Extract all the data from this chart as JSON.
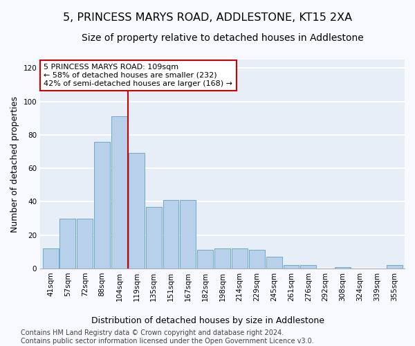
{
  "title": "5, PRINCESS MARYS ROAD, ADDLESTONE, KT15 2XA",
  "subtitle": "Size of property relative to detached houses in Addlestone",
  "xlabel": "Distribution of detached houses by size in Addlestone",
  "ylabel": "Number of detached properties",
  "categories": [
    "41sqm",
    "57sqm",
    "72sqm",
    "88sqm",
    "104sqm",
    "119sqm",
    "135sqm",
    "151sqm",
    "167sqm",
    "182sqm",
    "198sqm",
    "214sqm",
    "229sqm",
    "245sqm",
    "261sqm",
    "276sqm",
    "292sqm",
    "308sqm",
    "324sqm",
    "339sqm",
    "355sqm"
  ],
  "values": [
    12,
    30,
    30,
    76,
    91,
    69,
    37,
    41,
    41,
    11,
    12,
    12,
    11,
    7,
    2,
    2,
    0,
    1,
    0,
    0,
    2
  ],
  "bar_color": "#b8d0ea",
  "bar_edge_color": "#6aaad4",
  "vline_index": 4.5,
  "vline_color": "#cc0000",
  "annotation_text": "5 PRINCESS MARYS ROAD: 109sqm\n← 58% of detached houses are smaller (232)\n42% of semi-detached houses are larger (168) →",
  "annotation_box_color": "#ffffff",
  "annotation_box_edge_color": "#cc0000",
  "ylim": [
    0,
    125
  ],
  "yticks": [
    0,
    20,
    40,
    60,
    80,
    100,
    120
  ],
  "footnote": "Contains HM Land Registry data © Crown copyright and database right 2024.\nContains public sector information licensed under the Open Government Licence v3.0.",
  "background_color": "#e8eef8",
  "grid_color": "#ffffff",
  "title_fontsize": 11.5,
  "subtitle_fontsize": 10,
  "axis_label_fontsize": 9,
  "tick_fontsize": 7.5,
  "annotation_fontsize": 8,
  "footnote_fontsize": 7
}
